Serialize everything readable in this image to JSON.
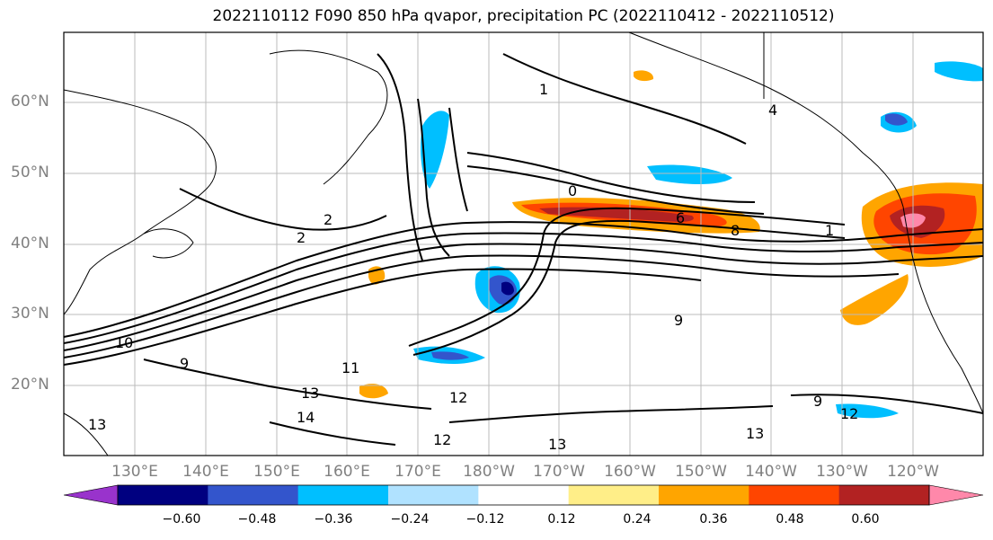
{
  "title": "2022110112 F090 850 hPa qvapor, precipitation PC (2022110412 - 2022110512)",
  "lat_labels": [
    "60°N",
    "50°N",
    "40°N",
    "30°N",
    "20°N"
  ],
  "lon_labels": [
    "130°E",
    "140°E",
    "150°E",
    "160°E",
    "170°E",
    "180°W",
    "170°W",
    "160°W",
    "150°W",
    "140°W",
    "130°W",
    "120°W"
  ],
  "contour_labels": [
    "0",
    "1",
    "1",
    "2",
    "2",
    "4",
    "6",
    "8",
    "9",
    "9",
    "9",
    "10",
    "11",
    "12",
    "12",
    "12",
    "13",
    "13",
    "13",
    "13",
    "14"
  ],
  "colorbar": {
    "colors": [
      "#9933cc",
      "#000080",
      "#3355cc",
      "#00bfff",
      "#b0e2ff",
      "#ffffff",
      "#ffee88",
      "#ffa500",
      "#ff4500",
      "#b22222",
      "#ff88aa"
    ],
    "ticks": [
      "−0.60",
      "−0.48",
      "−0.36",
      "−0.24",
      "−0.12",
      "0.12",
      "0.24",
      "0.36",
      "0.48",
      "0.60"
    ]
  }
}
